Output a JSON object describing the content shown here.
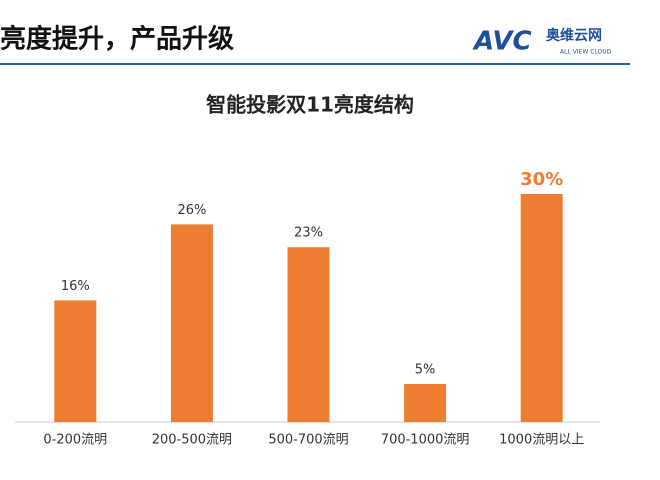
{
  "header": {
    "title": "亮度提升，产品升级",
    "logo_mark": "AVC",
    "logo_cn": "奥维云网",
    "logo_en": "ALL VIEW CLOUD"
  },
  "chart_data": {
    "type": "bar",
    "title": "智能投影双11亮度结构",
    "categories": [
      "0-200流明",
      "200-500流明",
      "500-700流明",
      "700-1000流明",
      "1000流明以上"
    ],
    "values": [
      16,
      26,
      23,
      5,
      30
    ],
    "value_labels": [
      "16%",
      "26%",
      "23%",
      "5%",
      "30%"
    ],
    "color": "#ed7d31",
    "ylim": [
      0,
      40
    ]
  }
}
